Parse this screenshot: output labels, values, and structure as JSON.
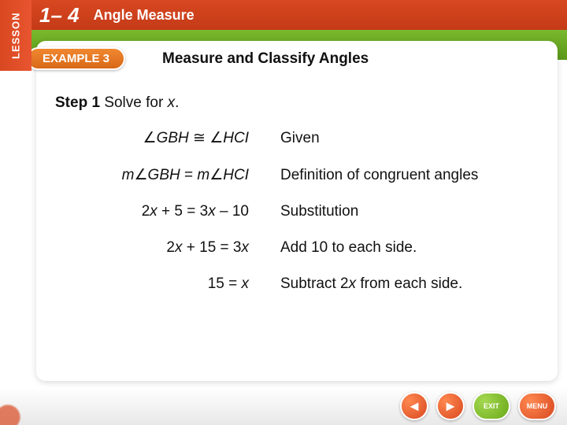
{
  "header": {
    "lesson_tab": "LESSON",
    "lesson_number": "1– 4",
    "lesson_title": "Angle Measure"
  },
  "example": {
    "badge": "EXAMPLE 3",
    "title": "Measure and Classify Angles"
  },
  "step": {
    "label": "Step 1",
    "text": "Solve for ",
    "var": "x",
    "period": "."
  },
  "proof": {
    "rows": [
      {
        "stmt_html": "∠<span class='ital'>GBH</span> ≅ ∠<span class='ital'>HCI</span>",
        "reason": "Given"
      },
      {
        "stmt_html": "<span class='ital'>m</span>∠<span class='ital'>GBH</span> = <span class='ital'>m</span>∠<span class='ital'>HCI</span>",
        "reason": "Definition of congruent angles"
      },
      {
        "stmt_html": "2<span class='ital'>x</span> + 5 = 3<span class='ital'>x</span> – 10",
        "reason": "Substitution"
      },
      {
        "stmt_html": "2<span class='ital'>x</span> + 15 = 3<span class='ital'>x</span>",
        "reason": "Add 10 to each side."
      },
      {
        "stmt_html": "15 = <span class='ital'>x</span>",
        "reason_html": "Subtract 2<span class='ital'>x</span> from each side."
      }
    ]
  },
  "nav": {
    "prev": "◄",
    "next": "►",
    "exit": "EXIT",
    "menu": "MENU"
  },
  "colors": {
    "orange_top": "#d84820",
    "green_band": "#6aa818",
    "badge": "#e87828",
    "text": "#111111",
    "bg": "#ffffff"
  }
}
